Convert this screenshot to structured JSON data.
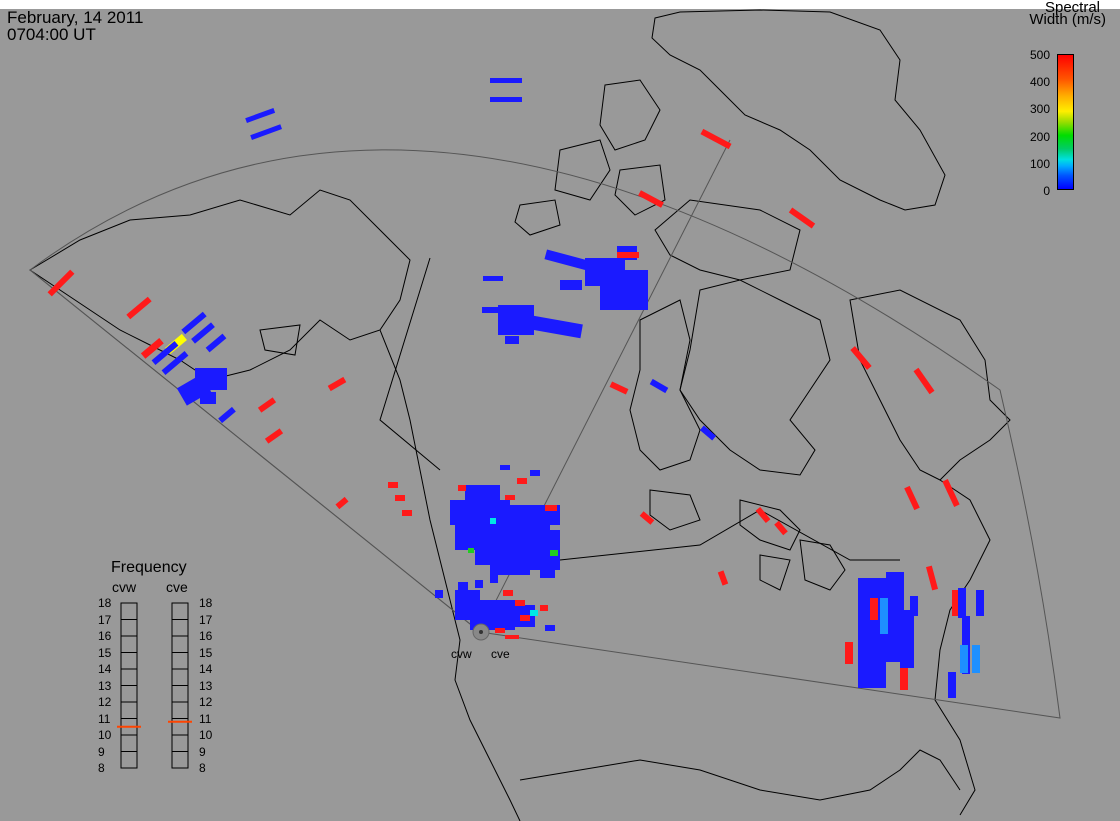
{
  "header": {
    "date": "February, 14 2011",
    "time": "0704:00 UT"
  },
  "colorbar": {
    "title_line1": "Spectral",
    "title_line2": "Width (m/s)",
    "ticks": [
      "500",
      "400",
      "300",
      "200",
      "100",
      "0"
    ],
    "colors": {
      "min": "#0000ff",
      "max": "#ff0000"
    }
  },
  "frequency": {
    "title": "Frequency",
    "radars": [
      "cvw",
      "cve"
    ],
    "ticks": [
      "18",
      "17",
      "16",
      "15",
      "14",
      "13",
      "12",
      "11",
      "10",
      "9",
      "8"
    ],
    "cvw_value": 10.5,
    "cve_value": 10.8,
    "marker_color": "#ff4400"
  },
  "sites": {
    "west": "cvw",
    "east": "cve"
  },
  "colors": {
    "background": "#999999",
    "low": "#1a1aff",
    "high": "#ff1a1a",
    "mid_cyan": "#00e6e6",
    "mid_green": "#22cc22",
    "mid_yellow": "#ffff00",
    "light_blue": "#1e90ff"
  }
}
